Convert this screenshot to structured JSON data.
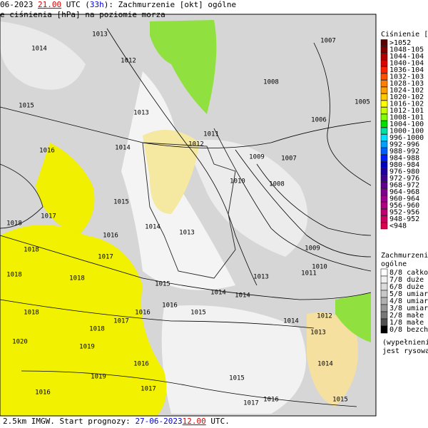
{
  "header": {
    "line1": {
      "prefix": "06-2023 ",
      "time": "21.00",
      "mid": " UTC (",
      "lead": "33h",
      "suffix": "): Zachmurzenie [okt] ogólne"
    },
    "line2": "e ciśnienia [hPa] na poziomie morza"
  },
  "footer": {
    "prefix": "2.5km IMGW. Start prognozy: ",
    "date": "27-06-2023",
    "time": "12.00",
    "suffix": " UTC."
  },
  "pressure_legend": {
    "title": "Ciśnienie [hP",
    "items": [
      {
        "label": ">1052",
        "color": "#5a0000"
      },
      {
        "label": "1048-105",
        "color": "#800000"
      },
      {
        "label": "1044-104",
        "color": "#b00000"
      },
      {
        "label": "1040-104",
        "color": "#e00000"
      },
      {
        "label": "1036-104",
        "color": "#ff2000"
      },
      {
        "label": "1032-103",
        "color": "#ff5000"
      },
      {
        "label": "1028-103",
        "color": "#ff8000"
      },
      {
        "label": "1024-102",
        "color": "#ffa000"
      },
      {
        "label": "1020-102",
        "color": "#ffc800"
      },
      {
        "label": "1016-102",
        "color": "#ffff00"
      },
      {
        "label": "1012-101",
        "color": "#c8ff00"
      },
      {
        "label": "1008-101",
        "color": "#80ff00"
      },
      {
        "label": "1004-100",
        "color": "#00e000"
      },
      {
        "label": "1000-100",
        "color": "#00e0a0"
      },
      {
        "label": "996-1000",
        "color": "#00e0ff"
      },
      {
        "label": "992-996",
        "color": "#00a0ff"
      },
      {
        "label": "988-992",
        "color": "#0060ff"
      },
      {
        "label": "984-988",
        "color": "#0020ff"
      },
      {
        "label": "980-984",
        "color": "#0000c0"
      },
      {
        "label": "976-980",
        "color": "#2000a0"
      },
      {
        "label": "972-976",
        "color": "#400090"
      },
      {
        "label": "968-972",
        "color": "#600090"
      },
      {
        "label": "964-968",
        "color": "#800090"
      },
      {
        "label": "960-964",
        "color": "#a00090"
      },
      {
        "label": "956-960",
        "color": "#b00080"
      },
      {
        "label": "952-956",
        "color": "#c00070"
      },
      {
        "label": "948-952",
        "color": "#d00060"
      },
      {
        "label": "<948",
        "color": "#e00050"
      }
    ]
  },
  "cloud_legend": {
    "title1": "Zachmurzenie",
    "title2": "ogólne",
    "items": [
      {
        "label": "8/8 całkow",
        "color": "#ffffff"
      },
      {
        "label": "7/8 duże",
        "color": "#f0f0f0"
      },
      {
        "label": "6/8 duże",
        "color": "#dcdcdc"
      },
      {
        "label": "5/8 umiarl",
        "color": "#c8c8c8"
      },
      {
        "label": "4/8 umiarl",
        "color": "#b0b0b0"
      },
      {
        "label": "3/8 umiarl",
        "color": "#989898"
      },
      {
        "label": "2/8 małe",
        "color": "#787878"
      },
      {
        "label": "1/8 małe",
        "color": "#505050"
      },
      {
        "label": "0/8 bezch",
        "color": "#000000"
      }
    ],
    "note1": "(wypełnieni",
    "note2": "jest rysowa"
  },
  "isobar_labels": [
    "1013",
    "1014",
    "1012",
    "1007",
    "1008",
    "1005",
    "1006",
    "1015",
    "1013",
    "1011",
    "1012",
    "1014",
    "1016",
    "1009",
    "1007",
    "1010",
    "1008",
    "1015",
    "1017",
    "1018",
    "1014",
    "1013",
    "1016",
    "1009",
    "1018",
    "1017",
    "1018",
    "1018",
    "1015",
    "1013",
    "1011",
    "1010",
    "1014",
    "1014",
    "1016",
    "1015",
    "1016",
    "1018",
    "1017",
    "1014",
    "1012",
    "1013",
    "1018",
    "1020",
    "1019",
    "1016",
    "1014",
    "1015",
    "1017",
    "1016",
    "1015",
    "1016",
    "1017",
    "1019"
  ]
}
